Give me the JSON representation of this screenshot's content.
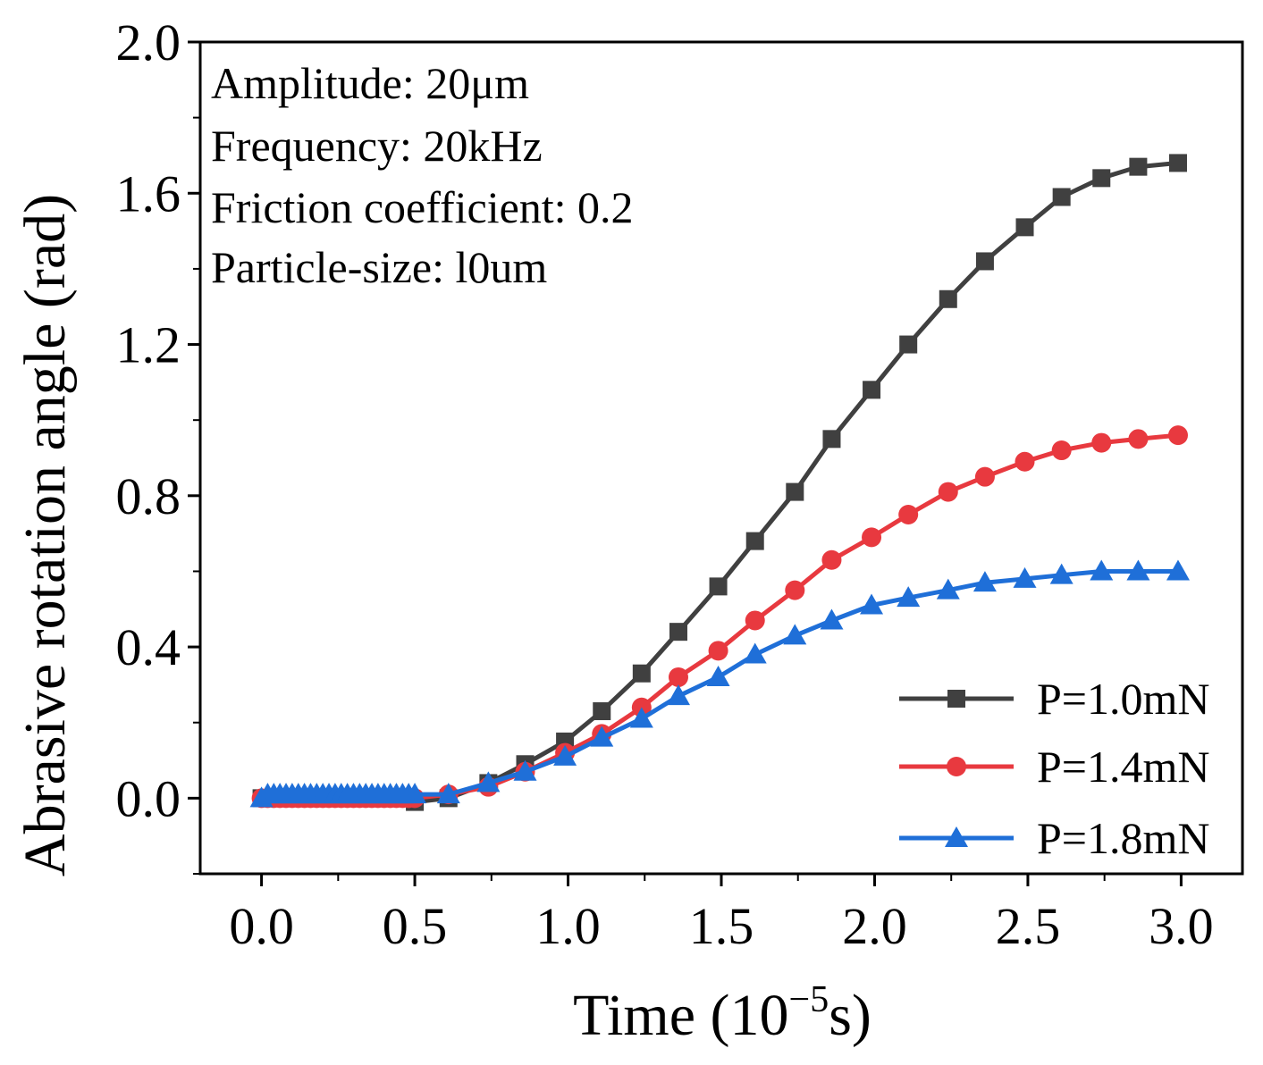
{
  "chart_data": {
    "type": "line",
    "xlabel_main": "Time (10",
    "xlabel_sup": "−5",
    "xlabel_tail": "s)",
    "ylabel": "Abrasive rotation angle (rad)",
    "xlim": [
      -0.2,
      3.2
    ],
    "ylim": [
      -0.2,
      2.0
    ],
    "xticks": [
      "0.0",
      "0.5",
      "1.0",
      "1.5",
      "2.0",
      "2.5",
      "3.0"
    ],
    "yticks": [
      "0.0",
      "0.4",
      "0.8",
      "1.2",
      "1.6",
      "2.0"
    ],
    "xtick_values": [
      0,
      0.5,
      1.0,
      1.5,
      2.0,
      2.5,
      3.0
    ],
    "ytick_values": [
      0,
      0.4,
      0.8,
      1.2,
      1.6,
      2.0
    ],
    "annotations": [
      "Amplitude: 20μm",
      "Frequency: 20kHz",
      "Friction coefficient: 0.2",
      "Particle-size: l0um"
    ],
    "legend_position": "bottom-right",
    "series": [
      {
        "name": "P=1.0mN",
        "color": "#404040",
        "marker": "square",
        "x": [
          0,
          0.02,
          0.04,
          0.06,
          0.08,
          0.1,
          0.12,
          0.14,
          0.16,
          0.18,
          0.2,
          0.22,
          0.24,
          0.26,
          0.28,
          0.3,
          0.32,
          0.34,
          0.36,
          0.38,
          0.4,
          0.42,
          0.44,
          0.46,
          0.48,
          0.5,
          0.61,
          0.74,
          0.86,
          0.99,
          1.11,
          1.24,
          1.36,
          1.49,
          1.61,
          1.74,
          1.86,
          1.99,
          2.11,
          2.24,
          2.36,
          2.49,
          2.61,
          2.74,
          2.86,
          2.99
        ],
        "y": [
          0,
          0,
          0,
          0,
          0,
          0,
          0,
          0,
          0,
          0,
          0,
          0,
          0,
          0,
          0,
          0,
          0,
          0,
          0,
          0,
          0,
          0,
          0,
          0,
          0,
          -0.01,
          0.0,
          0.04,
          0.09,
          0.15,
          0.23,
          0.33,
          0.44,
          0.56,
          0.68,
          0.81,
          0.95,
          1.08,
          1.2,
          1.32,
          1.42,
          1.51,
          1.59,
          1.64,
          1.67,
          1.68
        ]
      },
      {
        "name": "P=1.4mN",
        "color": "#e8393f",
        "marker": "circle",
        "x": [
          0,
          0.02,
          0.04,
          0.06,
          0.08,
          0.1,
          0.12,
          0.14,
          0.16,
          0.18,
          0.2,
          0.22,
          0.24,
          0.26,
          0.28,
          0.3,
          0.32,
          0.34,
          0.36,
          0.38,
          0.4,
          0.42,
          0.44,
          0.46,
          0.48,
          0.5,
          0.61,
          0.74,
          0.86,
          0.99,
          1.11,
          1.24,
          1.36,
          1.49,
          1.61,
          1.74,
          1.86,
          1.99,
          2.11,
          2.24,
          2.36,
          2.49,
          2.61,
          2.74,
          2.86,
          2.99
        ],
        "y": [
          0,
          0,
          0,
          0,
          0,
          0,
          0,
          0,
          0,
          0,
          0,
          0,
          0,
          0,
          0,
          0,
          0,
          0,
          0,
          0,
          0,
          0,
          0,
          0,
          0,
          0,
          0.01,
          0.03,
          0.07,
          0.12,
          0.17,
          0.24,
          0.32,
          0.39,
          0.47,
          0.55,
          0.63,
          0.69,
          0.75,
          0.81,
          0.85,
          0.89,
          0.92,
          0.94,
          0.95,
          0.96
        ]
      },
      {
        "name": "P=1.8mN",
        "color": "#1f6fd8",
        "marker": "triangle",
        "x": [
          0,
          0.02,
          0.04,
          0.06,
          0.08,
          0.1,
          0.12,
          0.14,
          0.16,
          0.18,
          0.2,
          0.22,
          0.24,
          0.26,
          0.28,
          0.3,
          0.32,
          0.34,
          0.36,
          0.38,
          0.4,
          0.42,
          0.44,
          0.46,
          0.48,
          0.5,
          0.61,
          0.74,
          0.86,
          0.99,
          1.11,
          1.24,
          1.36,
          1.49,
          1.61,
          1.74,
          1.86,
          1.99,
          2.11,
          2.24,
          2.36,
          2.49,
          2.61,
          2.74,
          2.86,
          2.99
        ],
        "y": [
          0,
          0.01,
          0.01,
          0.01,
          0.01,
          0.01,
          0.01,
          0.01,
          0.01,
          0.01,
          0.01,
          0.01,
          0.01,
          0.01,
          0.01,
          0.01,
          0.01,
          0.01,
          0.01,
          0.01,
          0.01,
          0.01,
          0.01,
          0.01,
          0.01,
          0.01,
          0.01,
          0.04,
          0.07,
          0.11,
          0.16,
          0.21,
          0.27,
          0.32,
          0.38,
          0.43,
          0.47,
          0.51,
          0.53,
          0.55,
          0.57,
          0.58,
          0.59,
          0.6,
          0.6,
          0.6
        ]
      }
    ]
  }
}
